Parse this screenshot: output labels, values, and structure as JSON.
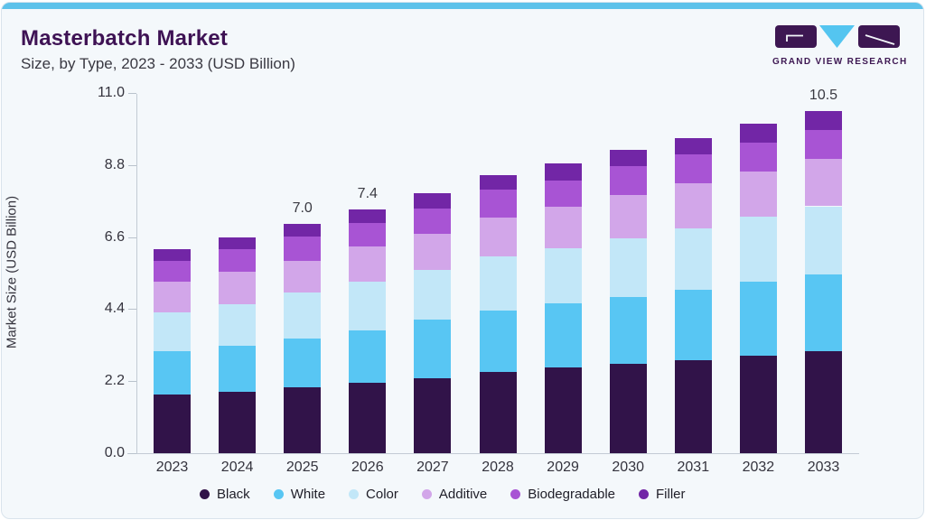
{
  "card": {
    "background": "#f4f8fb",
    "border_color": "#d9e3ec",
    "accent_color": "#5ec2ea"
  },
  "header": {
    "title": "Masterbatch Market",
    "subtitle": "Size, by Type, 2023 - 2033 (USD Billion)",
    "title_color": "#3e1254"
  },
  "logo": {
    "text": "GRAND VIEW RESEARCH",
    "mark_color": "#3d1752",
    "triangle_color": "#54c5f0",
    "text_color": "#3d1752"
  },
  "chart_data": {
    "type": "bar",
    "stacked": true,
    "title": "Masterbatch Market Size, by Type, 2023 - 2033 (USD Billion)",
    "xlabel": "",
    "ylabel": "Market Size (USD Billion)",
    "ylim": [
      0,
      11
    ],
    "yticks": [
      0.0,
      2.2,
      4.4,
      6.6,
      8.8,
      11.0
    ],
    "grid": false,
    "legend_position": "bottom",
    "categories": [
      "2023",
      "2024",
      "2025",
      "2026",
      "2027",
      "2028",
      "2029",
      "2030",
      "2031",
      "2032",
      "2033"
    ],
    "series": [
      {
        "name": "Black",
        "color": "#311349",
        "values": [
          1.78,
          1.87,
          2.01,
          2.15,
          2.28,
          2.49,
          2.61,
          2.72,
          2.84,
          2.98,
          3.12
        ]
      },
      {
        "name": "White",
        "color": "#58c6f3",
        "values": [
          1.34,
          1.4,
          1.5,
          1.61,
          1.8,
          1.86,
          1.96,
          2.06,
          2.16,
          2.25,
          2.35
        ]
      },
      {
        "name": "Color",
        "color": "#c2e7f8",
        "values": [
          1.17,
          1.29,
          1.4,
          1.47,
          1.52,
          1.66,
          1.7,
          1.78,
          1.86,
          1.98,
          2.07
        ]
      },
      {
        "name": "Additive",
        "color": "#d2a6e9",
        "values": [
          0.95,
          0.98,
          0.95,
          1.09,
          1.1,
          1.18,
          1.26,
          1.33,
          1.38,
          1.4,
          1.46
        ]
      },
      {
        "name": "Biodegradable",
        "color": "#a854d4",
        "values": [
          0.62,
          0.68,
          0.75,
          0.71,
          0.78,
          0.87,
          0.8,
          0.88,
          0.88,
          0.86,
          0.88
        ]
      },
      {
        "name": "Filler",
        "color": "#7226a6",
        "values": [
          0.38,
          0.37,
          0.4,
          0.4,
          0.45,
          0.42,
          0.51,
          0.5,
          0.51,
          0.58,
          0.57
        ]
      }
    ],
    "totals_estimated": [
      6.24,
      6.59,
      7.01,
      7.43,
      7.93,
      8.48,
      8.84,
      9.27,
      9.63,
      10.05,
      10.45
    ],
    "bar_value_labels": {
      "2025": "7.0",
      "2026": "7.4",
      "2033": "10.5"
    }
  }
}
